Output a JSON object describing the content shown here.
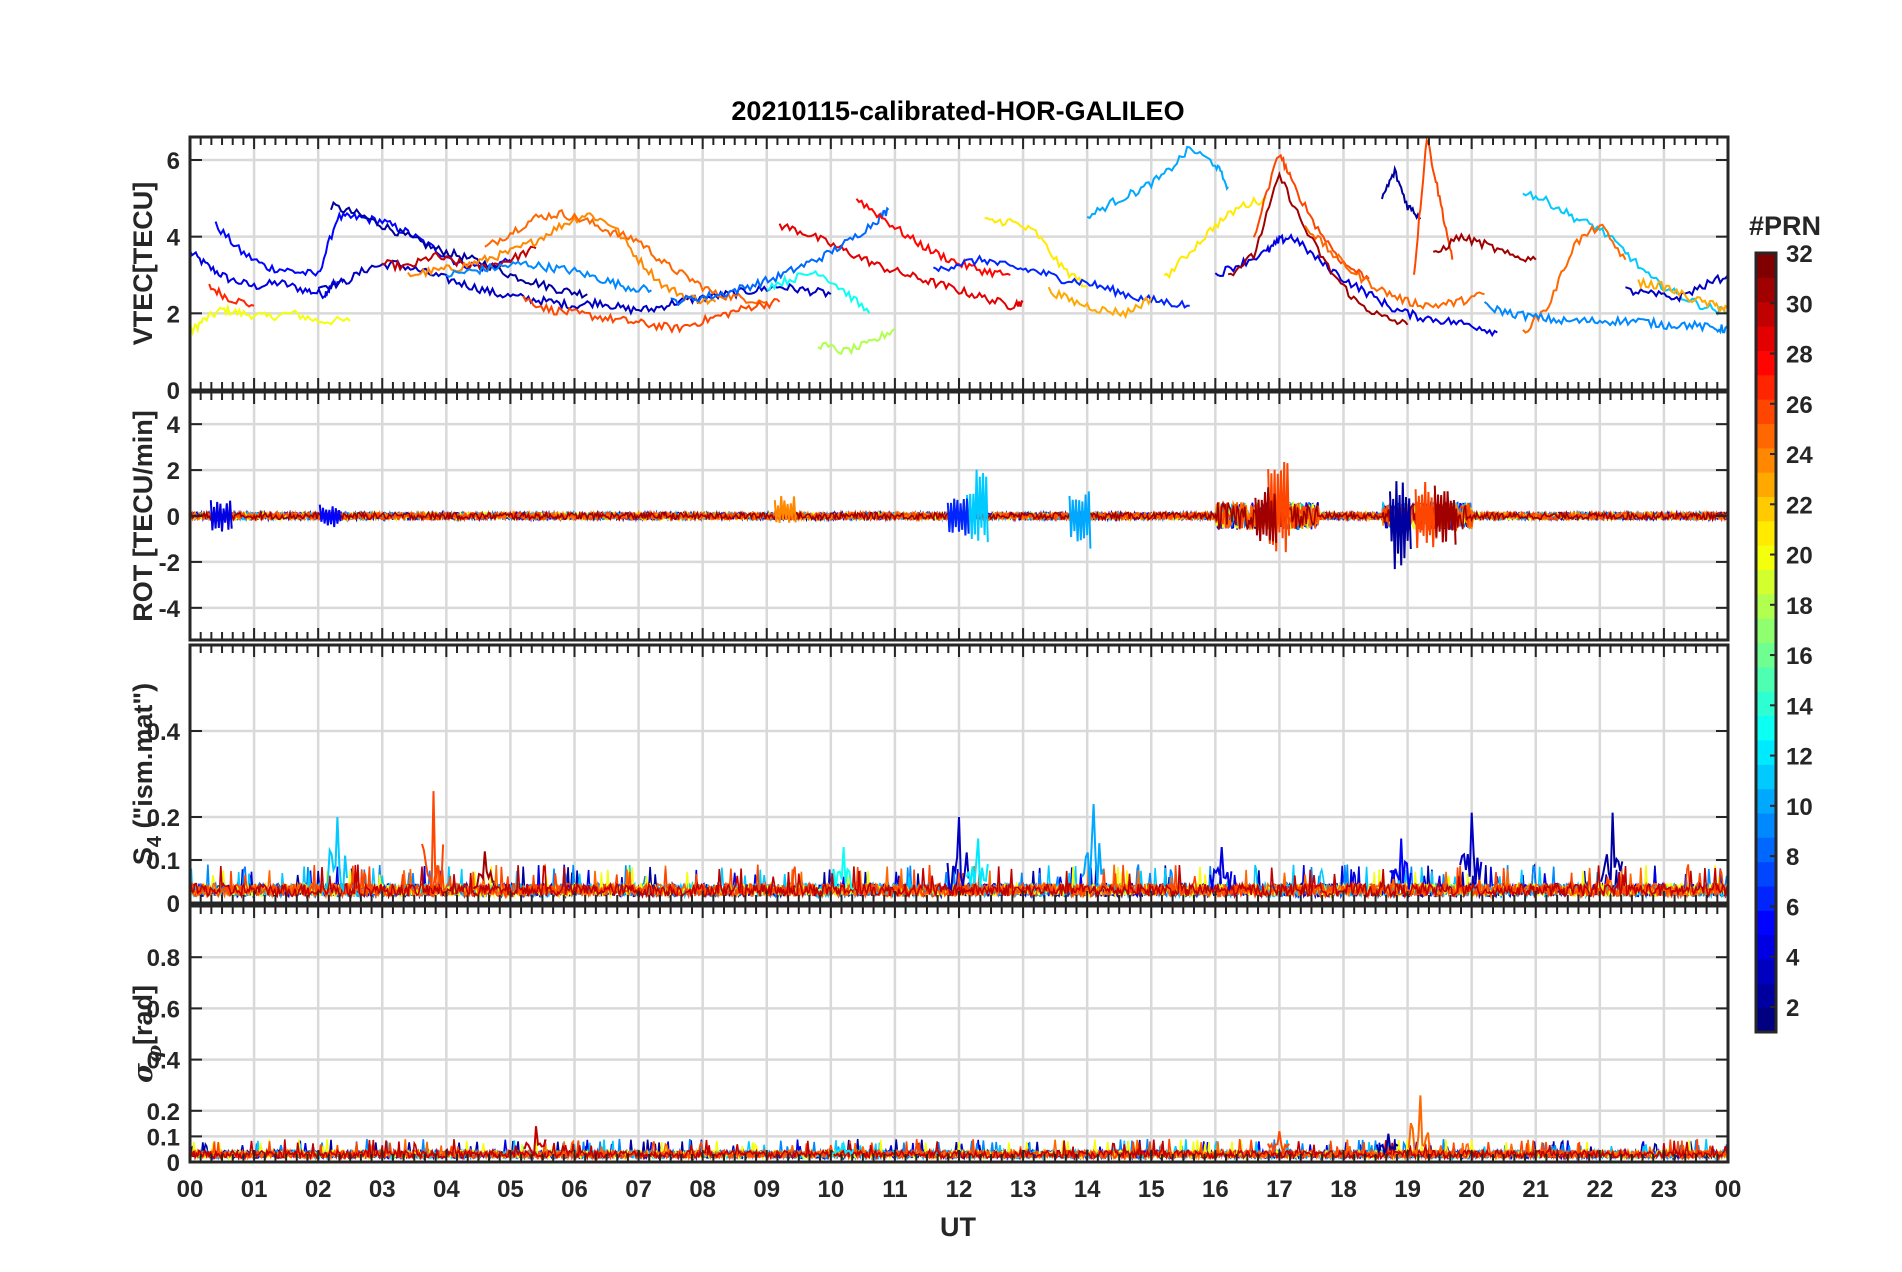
{
  "chart_data": {
    "type": "line",
    "title": "20210115-calibrated-HOR-GALILEO",
    "xlabel": "UT",
    "x_tick_labels": [
      "00",
      "01",
      "02",
      "03",
      "04",
      "05",
      "06",
      "07",
      "08",
      "09",
      "10",
      "11",
      "12",
      "13",
      "14",
      "15",
      "16",
      "17",
      "18",
      "19",
      "20",
      "21",
      "22",
      "23",
      "00"
    ],
    "xlim": [
      0,
      24
    ],
    "colorbar": {
      "label": "#PRN",
      "range": [
        1,
        32
      ],
      "tick_labels": [
        "2",
        "4",
        "6",
        "8",
        "10",
        "12",
        "14",
        "16",
        "18",
        "20",
        "22",
        "24",
        "26",
        "28",
        "30",
        "32"
      ],
      "colormap": "jet"
    },
    "panels": [
      {
        "id": "vtec",
        "ylabel": "VTEC[TECU]",
        "ylim": [
          0,
          6.6
        ],
        "y_tick_values": [
          0,
          2,
          4,
          6
        ],
        "y_tick_labels": [
          "0",
          "2",
          "4",
          "6"
        ],
        "series": [
          {
            "prn": 4,
            "x": [
              0.0,
              0.3,
              0.6,
              1.0,
              1.4,
              1.8,
              2.1,
              2.2,
              2.4
            ],
            "y": [
              3.6,
              3.2,
              2.9,
              2.7,
              2.8,
              2.6,
              2.5,
              2.7,
              2.9
            ]
          },
          {
            "prn": 20,
            "x": [
              0.0,
              0.2,
              0.5,
              0.8,
              1.2,
              1.6,
              2.0,
              2.5
            ],
            "y": [
              1.5,
              1.8,
              2.1,
              2.0,
              1.9,
              2.0,
              1.8,
              1.8
            ]
          },
          {
            "prn": 27,
            "x": [
              0.3,
              0.6,
              1.0
            ],
            "y": [
              2.7,
              2.4,
              2.2
            ]
          },
          {
            "prn": 5,
            "x": [
              0.4,
              0.8,
              1.2,
              1.6,
              2.0,
              2.3,
              2.6,
              3.0,
              3.4,
              3.8,
              4.2,
              4.6,
              5.0
            ],
            "y": [
              4.3,
              3.6,
              3.2,
              3.1,
              3.0,
              4.5,
              4.5,
              4.4,
              4.1,
              3.7,
              3.3,
              3.2,
              3.4
            ]
          },
          {
            "prn": 2,
            "x": [
              2.2,
              2.6,
              3.0,
              3.4,
              3.8,
              4.2,
              4.6,
              5.0,
              5.4,
              5.8,
              6.2
            ],
            "y": [
              4.8,
              4.6,
              4.3,
              4.0,
              3.7,
              3.5,
              3.3,
              3.0,
              2.8,
              2.6,
              2.5
            ]
          },
          {
            "prn": 3,
            "x": [
              2.0,
              2.4,
              2.8,
              3.2,
              3.6,
              4.0,
              4.4,
              4.8,
              5.2,
              5.6,
              6.0,
              6.4,
              6.8,
              7.2,
              7.6,
              8.0,
              8.4,
              8.8,
              9.2,
              9.6,
              10.0
            ],
            "y": [
              2.7,
              2.8,
              3.2,
              3.3,
              3.1,
              2.9,
              2.7,
              2.5,
              2.4,
              2.3,
              2.2,
              2.3,
              2.1,
              2.1,
              2.3,
              2.4,
              2.5,
              2.6,
              2.7,
              2.6,
              2.5
            ]
          },
          {
            "prn": 30,
            "x": [
              3.0,
              3.4,
              3.8,
              4.2,
              4.6,
              5.0,
              5.4
            ],
            "y": [
              3.3,
              3.2,
              3.5,
              3.3,
              3.2,
              3.4,
              3.7
            ]
          },
          {
            "prn": 24,
            "x": [
              3.4,
              3.8,
              4.2,
              4.6,
              5.0,
              5.4,
              5.8,
              6.2,
              6.6,
              7.0,
              7.4,
              7.8,
              8.2
            ],
            "y": [
              3.0,
              3.1,
              3.2,
              3.4,
              3.6,
              3.9,
              4.3,
              4.6,
              4.3,
              3.4,
              2.7,
              2.4,
              2.3
            ]
          },
          {
            "prn": 25,
            "x": [
              4.6,
              5.0,
              5.4,
              5.8,
              6.2,
              6.6,
              7.0,
              7.4,
              7.8,
              8.2,
              8.6,
              9.0
            ],
            "y": [
              3.7,
              4.1,
              4.5,
              4.6,
              4.4,
              4.1,
              3.9,
              3.3,
              2.9,
              2.5,
              2.4,
              2.3
            ]
          },
          {
            "prn": 26,
            "x": [
              5.2,
              5.6,
              6.0,
              6.4,
              6.8,
              7.2,
              7.6,
              8.0,
              8.4,
              8.8,
              9.2
            ],
            "y": [
              2.4,
              2.1,
              2.0,
              1.9,
              1.8,
              1.7,
              1.6,
              1.8,
              2.0,
              2.2,
              2.3
            ]
          },
          {
            "prn": 9,
            "x": [
              4.0,
              4.4,
              4.8,
              5.2,
              5.6,
              6.0,
              6.4,
              6.8,
              7.2
            ],
            "y": [
              3.0,
              3.1,
              3.2,
              3.3,
              3.2,
              3.1,
              2.9,
              2.7,
              2.6
            ]
          },
          {
            "prn": 29,
            "x": [
              9.2,
              9.6,
              10.0,
              10.4,
              10.8,
              11.2,
              11.6,
              12.0,
              12.4,
              12.8,
              13.0
            ],
            "y": [
              4.3,
              4.1,
              3.8,
              3.5,
              3.2,
              3.0,
              2.8,
              2.6,
              2.4,
              2.2,
              2.3
            ]
          },
          {
            "prn": 8,
            "x": [
              7.5,
              7.9,
              8.3,
              8.7,
              9.1,
              9.5,
              9.9,
              10.3,
              10.7,
              10.9
            ],
            "y": [
              2.3,
              2.4,
              2.5,
              2.7,
              2.9,
              3.2,
              3.5,
              3.9,
              4.4,
              4.7
            ]
          },
          {
            "prn": 13,
            "x": [
              9.0,
              9.4,
              9.8,
              10.2,
              10.6
            ],
            "y": [
              2.7,
              2.9,
              3.1,
              2.6,
              2.0
            ]
          },
          {
            "prn": 18,
            "x": [
              9.8,
              10.2,
              10.6,
              11.0
            ],
            "y": [
              1.2,
              1.0,
              1.2,
              1.6
            ]
          },
          {
            "prn": 28,
            "x": [
              10.4,
              10.8,
              11.2,
              11.6,
              12.0,
              12.4,
              12.8
            ],
            "y": [
              5.0,
              4.5,
              4.0,
              3.6,
              3.3,
              3.1,
              3.0
            ]
          },
          {
            "prn": 21,
            "x": [
              12.4,
              12.8,
              13.2,
              13.6,
              14.0
            ],
            "y": [
              4.4,
              4.4,
              4.1,
              3.2,
              2.7
            ]
          },
          {
            "prn": 6,
            "x": [
              11.6,
              12.0,
              12.4,
              12.8,
              13.2,
              13.6,
              14.0,
              14.4,
              14.8,
              15.2,
              15.6
            ],
            "y": [
              3.1,
              3.3,
              3.4,
              3.2,
              3.1,
              2.9,
              2.8,
              2.6,
              2.4,
              2.3,
              2.2
            ]
          },
          {
            "prn": 23,
            "x": [
              13.4,
              13.8,
              14.2,
              14.6,
              15.0
            ],
            "y": [
              2.6,
              2.3,
              2.1,
              2.0,
              2.4
            ]
          },
          {
            "prn": 10,
            "x": [
              14.0,
              14.4,
              14.8,
              15.2,
              15.6,
              16.0,
              16.2
            ],
            "y": [
              4.5,
              4.9,
              5.2,
              5.6,
              6.3,
              5.9,
              5.3
            ]
          },
          {
            "prn": 21,
            "x": [
              15.2,
              15.6,
              16.0,
              16.4,
              16.8
            ],
            "y": [
              2.9,
              3.6,
              4.3,
              4.8,
              5.0
            ]
          },
          {
            "prn": 4,
            "x": [
              16.0,
              16.4,
              16.8,
              17.0,
              17.2,
              17.6,
              18.0,
              18.4,
              18.8,
              19.2,
              19.6,
              20.0,
              20.4
            ],
            "y": [
              3.0,
              3.3,
              3.6,
              3.9,
              4.0,
              3.4,
              2.9,
              2.5,
              2.1,
              1.9,
              1.8,
              1.7,
              1.5
            ]
          },
          {
            "prn": 31,
            "x": [
              16.2,
              16.6,
              17.0,
              17.4,
              17.8,
              18.2,
              18.6,
              19.0
            ],
            "y": [
              3.0,
              3.5,
              5.6,
              4.2,
              3.1,
              2.3,
              1.9,
              1.7
            ]
          },
          {
            "prn": 26,
            "x": [
              16.6,
              17.0,
              17.2,
              17.6,
              18.0,
              18.4
            ],
            "y": [
              4.0,
              6.2,
              5.4,
              4.2,
              3.3,
              2.9
            ]
          },
          {
            "prn": 25,
            "x": [
              17.4,
              17.8,
              18.2,
              18.6,
              19.0,
              19.4,
              19.8,
              20.2
            ],
            "y": [
              4.3,
              3.6,
              3.0,
              2.6,
              2.3,
              2.2,
              2.3,
              2.5
            ]
          },
          {
            "prn": 2,
            "x": [
              18.6,
              18.8,
              19.0,
              19.2
            ],
            "y": [
              5.0,
              5.7,
              4.8,
              4.5
            ]
          },
          {
            "prn": 26,
            "x": [
              19.1,
              19.3,
              19.5,
              19.7
            ],
            "y": [
              3.0,
              6.6,
              5.0,
              3.4
            ]
          },
          {
            "prn": 31,
            "x": [
              19.4,
              19.8,
              20.2,
              20.6,
              21.0
            ],
            "y": [
              3.5,
              4.0,
              3.8,
              3.5,
              3.4
            ]
          },
          {
            "prn": 11,
            "x": [
              20.8,
              21.2,
              21.6,
              22.0,
              22.4,
              22.8,
              23.2,
              23.6,
              24.0
            ],
            "y": [
              5.2,
              4.9,
              4.5,
              4.2,
              3.6,
              2.9,
              2.5,
              2.2,
              2.0
            ]
          },
          {
            "prn": 25,
            "x": [
              20.8,
              21.2,
              21.6,
              22.0,
              22.4
            ],
            "y": [
              1.5,
              2.2,
              3.8,
              4.3,
              3.4
            ]
          },
          {
            "prn": 9,
            "x": [
              20.2,
              20.6,
              21.0,
              21.4,
              21.8,
              22.2,
              22.6,
              23.0,
              23.4,
              23.8,
              24.0
            ],
            "y": [
              2.2,
              2.0,
              1.9,
              1.8,
              1.8,
              1.8,
              1.8,
              1.7,
              1.7,
              1.6,
              1.6
            ]
          },
          {
            "prn": 3,
            "x": [
              22.4,
              22.8,
              23.2,
              23.6,
              24.0
            ],
            "y": [
              2.6,
              2.5,
              2.4,
              2.7,
              3.0
            ]
          },
          {
            "prn": 23,
            "x": [
              22.6,
              23.0,
              23.4,
              23.8,
              24.0
            ],
            "y": [
              2.8,
              2.7,
              2.4,
              2.2,
              2.1
            ]
          }
        ]
      },
      {
        "id": "rot",
        "ylabel": "ROT [TECU/min]",
        "ylim": [
          -5.4,
          5.4
        ],
        "y_tick_values": [
          -4,
          -2,
          0,
          2,
          4
        ],
        "y_tick_labels": [
          "-4",
          "-2",
          "0",
          "2",
          "4"
        ],
        "baseline_noise": 0.15,
        "spikes": [
          {
            "prn": 4,
            "x": 0.5,
            "min": -0.7,
            "max": 0.7
          },
          {
            "prn": 5,
            "x": 2.2,
            "min": -0.5,
            "max": 0.5
          },
          {
            "prn": 24,
            "x": 9.3,
            "min": -0.3,
            "max": 1.0
          },
          {
            "prn": 11,
            "x": 12.3,
            "min": -1.2,
            "max": 2.2
          },
          {
            "prn": 6,
            "x": 12.0,
            "min": -0.9,
            "max": 1.0
          },
          {
            "prn": 10,
            "x": 13.9,
            "min": -1.6,
            "max": 1.1
          },
          {
            "prn": 26,
            "x": 17.0,
            "min": -1.6,
            "max": 2.8
          },
          {
            "prn": 31,
            "x": 16.8,
            "min": -1.2,
            "max": 1.5
          },
          {
            "prn": 2,
            "x": 18.9,
            "min": -2.4,
            "max": 1.6
          },
          {
            "prn": 26,
            "x": 19.3,
            "min": -1.5,
            "max": 1.5
          },
          {
            "prn": 31,
            "x": 19.6,
            "min": -1.4,
            "max": 1.4
          }
        ]
      },
      {
        "id": "s4",
        "ylabel": "S4 (\"ism.mat\")",
        "ylim": [
          0,
          0.6
        ],
        "y_tick_values": [
          0,
          0.1,
          0.2,
          0.4
        ],
        "y_tick_labels": [
          "0",
          "0.1",
          "0.2",
          "0.4"
        ],
        "baseline": 0.03,
        "spikes": [
          {
            "prn": 11,
            "x": 2.3,
            "max": 0.2
          },
          {
            "prn": 26,
            "x": 3.8,
            "max": 0.26
          },
          {
            "prn": 31,
            "x": 4.6,
            "max": 0.12
          },
          {
            "prn": 13,
            "x": 10.2,
            "max": 0.13
          },
          {
            "prn": 3,
            "x": 12.0,
            "max": 0.2
          },
          {
            "prn": 12,
            "x": 12.3,
            "max": 0.15
          },
          {
            "prn": 10,
            "x": 14.1,
            "max": 0.23
          },
          {
            "prn": 4,
            "x": 16.1,
            "max": 0.13
          },
          {
            "prn": 3,
            "x": 20.0,
            "max": 0.21
          },
          {
            "prn": 2,
            "x": 22.2,
            "max": 0.21
          },
          {
            "prn": 5,
            "x": 18.9,
            "max": 0.15
          }
        ]
      },
      {
        "id": "sigma",
        "ylabel": "σφ[rad]",
        "ylim": [
          0,
          1.0
        ],
        "y_tick_values": [
          0,
          0.1,
          0.2,
          0.4,
          0.6,
          0.8
        ],
        "y_tick_labels": [
          "0",
          "0.1",
          "0.2",
          "0.4",
          "0.6",
          "0.8"
        ],
        "baseline": 0.03,
        "spikes": [
          {
            "prn": 30,
            "x": 5.4,
            "max": 0.14
          },
          {
            "prn": 12,
            "x": 10.2,
            "max": 0.07
          },
          {
            "prn": 26,
            "x": 17.0,
            "max": 0.12
          },
          {
            "prn": 2,
            "x": 18.7,
            "max": 0.11
          },
          {
            "prn": 25,
            "x": 19.2,
            "max": 0.26
          }
        ]
      }
    ]
  }
}
